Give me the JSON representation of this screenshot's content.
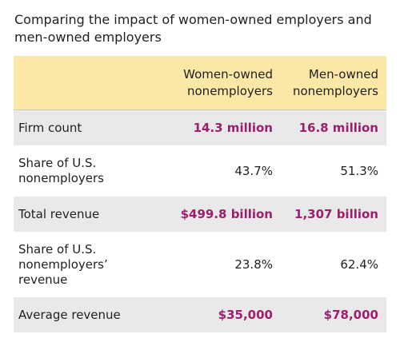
{
  "title": "Comparing the impact of women-owned employers and men-owned employers",
  "accent_color": "#9c1f6e",
  "header_color": "#fbe8a6",
  "stripe_color": "#eae9e9",
  "columns": {
    "women": "Women-owned nonemployers",
    "men": "Men-owned nonemployers"
  },
  "rows": [
    {
      "label": "Firm count",
      "women": "14.3 million",
      "men": "16.8 million",
      "highlight": true
    },
    {
      "label": "Share of U.S. nonemployers",
      "women": "43.7%",
      "men": "51.3%",
      "highlight": false
    },
    {
      "label": "Total revenue",
      "women": "$499.8 billion",
      "men": "1,307 billion",
      "highlight": true
    },
    {
      "label": "Share of U.S. nonemployers’ revenue",
      "women": "23.8%",
      "men": "62.4%",
      "highlight": false
    },
    {
      "label": "Average revenue",
      "women": "$35,000",
      "men": "$78,000",
      "highlight": true
    }
  ]
}
